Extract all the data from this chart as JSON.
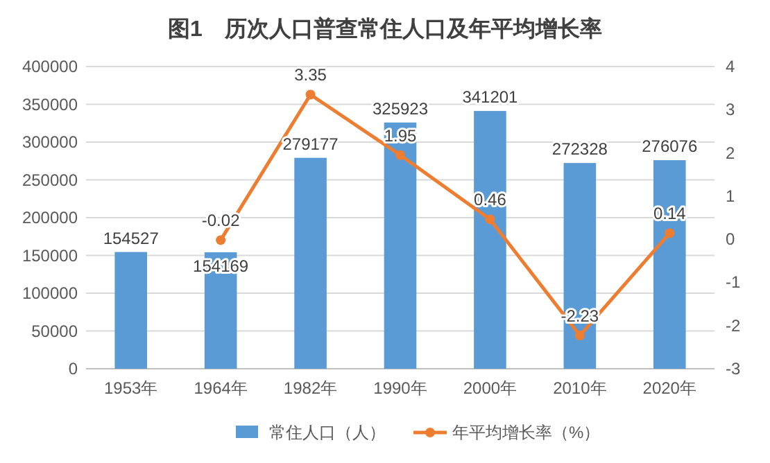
{
  "chart_data": {
    "type": "bar",
    "title": "图1　历次人口普查常住人口及年平均增长率",
    "categories": [
      "1953年",
      "1964年",
      "1982年",
      "1990年",
      "2000年",
      "2010年",
      "2020年"
    ],
    "series": [
      {
        "name": "常住人口（人）",
        "color": "#5b9bd5",
        "values": [
          154527,
          154169,
          279177,
          325923,
          341201,
          272328,
          276076
        ]
      },
      {
        "name": "年平均增长率（%）",
        "type": "line",
        "axis": "y2",
        "color": "#ed7d31",
        "marker": "circle",
        "values": [
          null,
          -0.02,
          3.35,
          1.95,
          0.46,
          -2.23,
          0.14
        ]
      }
    ],
    "ylim": [
      0,
      400000
    ],
    "yticks": [
      0,
      50000,
      100000,
      150000,
      200000,
      250000,
      300000,
      350000,
      400000
    ],
    "y2lim": [
      -3,
      4
    ],
    "y2ticks": [
      -3,
      -2,
      -1,
      0,
      1,
      2,
      3,
      4
    ],
    "data_labels": true,
    "grid": "y",
    "legend": "bottom"
  }
}
